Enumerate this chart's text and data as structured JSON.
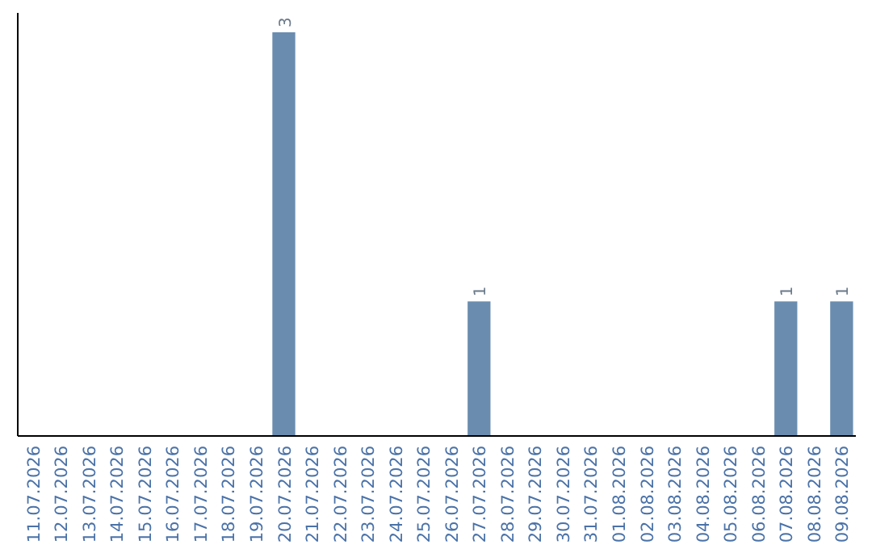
{
  "chart_data": {
    "type": "bar",
    "categories": [
      "11.07.2026",
      "12.07.2026",
      "13.07.2026",
      "14.07.2026",
      "15.07.2026",
      "16.07.2026",
      "17.07.2026",
      "18.07.2026",
      "19.07.2026",
      "20.07.2026",
      "21.07.2026",
      "22.07.2026",
      "23.07.2026",
      "24.07.2026",
      "25.07.2026",
      "26.07.2026",
      "27.07.2026",
      "28.07.2026",
      "29.07.2026",
      "30.07.2026",
      "31.07.2026",
      "01.08.2026",
      "02.08.2026",
      "03.08.2026",
      "04.08.2026",
      "05.08.2026",
      "06.08.2026",
      "07.08.2026",
      "08.08.2026",
      "09.08.2026"
    ],
    "values": [
      0,
      0,
      0,
      0,
      0,
      0,
      0,
      0,
      0,
      3,
      0,
      0,
      0,
      0,
      0,
      0,
      1,
      0,
      0,
      0,
      0,
      0,
      0,
      0,
      0,
      0,
      0,
      1,
      0,
      1
    ],
    "value_labels": [
      null,
      null,
      null,
      null,
      null,
      null,
      null,
      null,
      null,
      "3",
      null,
      null,
      null,
      null,
      null,
      null,
      "1",
      null,
      null,
      null,
      null,
      null,
      null,
      null,
      null,
      null,
      null,
      "1",
      null,
      "1"
    ],
    "color": "#6a8caf"
  }
}
